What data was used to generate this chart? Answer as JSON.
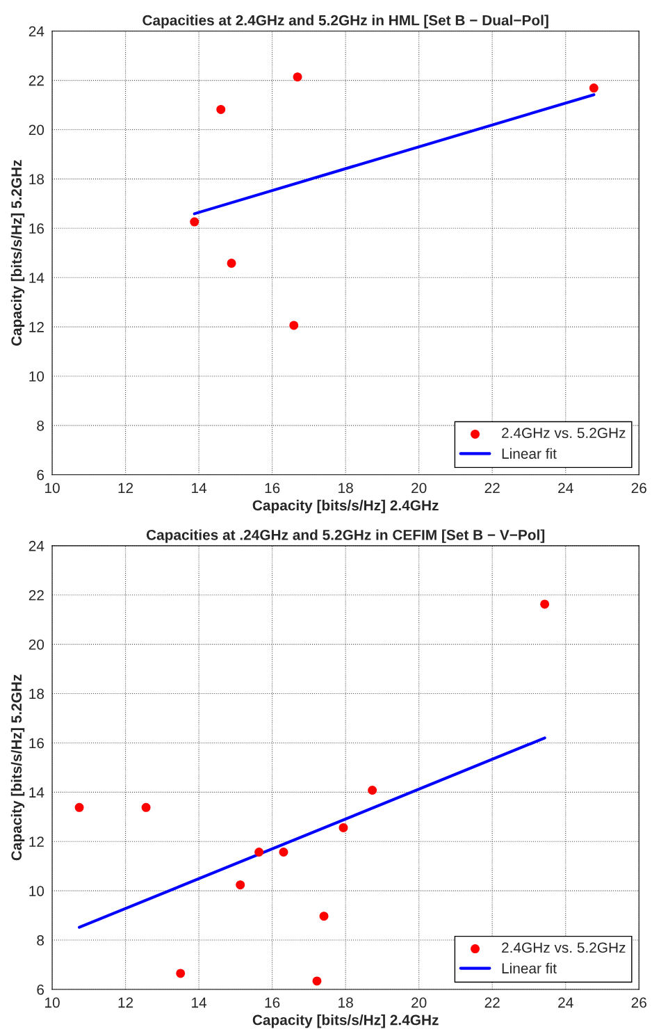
{
  "chart_data": [
    {
      "type": "scatter",
      "title": "Capacities at 2.4GHz and 5.2GHz in HML [Set B − Dual−Pol]",
      "xlabel": "Capacity [bits/s/Hz] 2.4GHz",
      "ylabel": "Capacity [bits/s/Hz] 5.2GHz",
      "xlim": [
        10,
        26
      ],
      "ylim": [
        6,
        24
      ],
      "xticks": [
        10,
        12,
        14,
        16,
        18,
        20,
        22,
        24,
        26
      ],
      "yticks": [
        6,
        8,
        10,
        12,
        14,
        16,
        18,
        20,
        22,
        24
      ],
      "grid": true,
      "legend": "bottom right",
      "series": [
        {
          "name": "2.4GHz vs. 5.2GHz",
          "marker": "circle",
          "color": "#ff0000",
          "x": [
            13.88,
            14.6,
            16.69,
            14.89,
            16.59,
            24.77
          ],
          "values": [
            16.26,
            20.82,
            22.14,
            14.58,
            12.06,
            21.69
          ]
        },
        {
          "name": "Linear fit",
          "type": "line",
          "line_style": "solid",
          "color": "#0000ff",
          "x": [
            13.88,
            24.77
          ],
          "values": [
            16.59,
            21.42
          ]
        }
      ]
    },
    {
      "type": "scatter",
      "title": "Capacities at .24GHz and 5.2GHz in CEFIM [Set B − V−Pol]",
      "xlabel": "Capacity [bits/s/Hz] 2.4GHz",
      "ylabel": "Capacity [bits/s/Hz] 5.2GHz",
      "xlim": [
        10,
        26
      ],
      "ylim": [
        6,
        24
      ],
      "xticks": [
        10,
        12,
        14,
        16,
        18,
        20,
        22,
        24,
        26
      ],
      "yticks": [
        6,
        8,
        10,
        12,
        14,
        16,
        18,
        20,
        22,
        24
      ],
      "grid": true,
      "legend": "bottom right",
      "series": [
        {
          "name": "2.4GHz vs. 5.2GHz",
          "marker": "circle",
          "color": "#ff0000",
          "x": [
            10.74,
            12.56,
            13.5,
            15.13,
            15.64,
            16.31,
            17.41,
            17.22,
            17.94,
            18.73,
            23.43
          ],
          "values": [
            13.38,
            13.38,
            6.65,
            10.24,
            11.57,
            11.57,
            8.97,
            6.34,
            12.56,
            14.08,
            21.63
          ]
        },
        {
          "name": "Linear fit",
          "type": "line",
          "line_style": "solid",
          "color": "#0000ff",
          "x": [
            10.74,
            23.43
          ],
          "values": [
            8.52,
            16.2
          ]
        }
      ]
    }
  ]
}
